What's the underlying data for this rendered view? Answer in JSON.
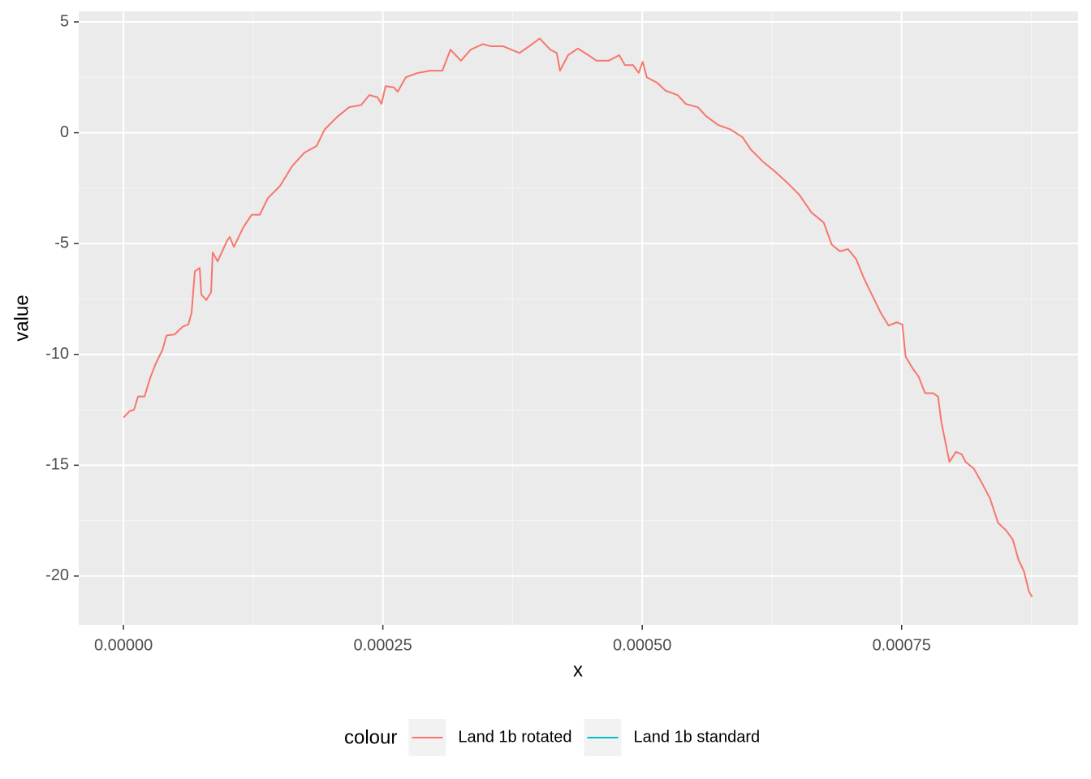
{
  "chart_data": {
    "type": "line",
    "xlabel": "x",
    "ylabel": "value",
    "legend_title": "colour",
    "legend_position": "bottom",
    "grid": true,
    "xlim": [
      -4.31e-05,
      0.00092
    ],
    "ylim": [
      -22.2,
      5.476
    ],
    "xticks": [
      {
        "value": 0,
        "label": "0.00000"
      },
      {
        "value": 0.00025,
        "label": "0.00025"
      },
      {
        "value": 0.0005,
        "label": "0.00050"
      },
      {
        "value": 0.00075,
        "label": "0.00075"
      }
    ],
    "yticks": [
      5,
      0,
      -5,
      -10,
      -15,
      -20
    ],
    "x": [
      0,
      6.26e-06,
      1.017e-05,
      1.408e-05,
      2.033e-05,
      2.581e-05,
      3.128e-05,
      3.754e-05,
      4.145e-05,
      4.927e-05,
      5.709e-05,
      6.256e-05,
      6.569e-05,
      6.882e-05,
      7.351e-05,
      7.507e-05,
      7.976e-05,
      8.446e-05,
      8.602e-05,
      9.071e-05,
      0.0001001,
      0.00010244,
      0.00010635,
      0.00011574,
      0.00012356,
      0.00013138,
      0.0001392,
      0.00015093,
      0.00016266,
      0.00017439,
      0.00018612,
      0.00019394,
      0.00020567,
      0.0002174,
      0.00022913,
      0.00023695,
      0.00024477,
      0.00024868,
      0.00025259,
      0.00026041,
      0.00026432,
      0.00027214,
      0.00028387,
      0.0002956,
      0.00030733,
      0.00031515,
      0.00032531,
      0.0003347,
      0.00034643,
      0.00035425,
      0.00036598,
      0.0003738,
      0.00038162,
      0.000391,
      0.00040117,
      0.00041133,
      0.00041759,
      0.00042072,
      0.00042854,
      0.00043792,
      0.00044809,
      0.00045591,
      0.00046764,
      0.0004778,
      0.00048328,
      0.0004911,
      0.00049657,
      0.00050048,
      0.00050439,
      0.00051456,
      0.00052238,
      0.00053411,
      0.00054193,
      0.00055366,
      0.00056148,
      0.00057321,
      0.00058494,
      0.00059667,
      0.00060449,
      0.00061622,
      0.00062795,
      0.00063968,
      0.00065141,
      0.00066314,
      0.00067487,
      0.00068269,
      0.00069051,
      0.00069833,
      0.00070615,
      0.00071397,
      0.00072179,
      0.00072961,
      0.00073743,
      0.00074525,
      0.00075072,
      0.00075385,
      0.00076089,
      0.00076636,
      0.00077262,
      0.00078044,
      0.00078513,
      0.00078826,
      0.00079217,
      0.00079608,
      0.00080233,
      0.00080781,
      0.00081172,
      0.00081954,
      0.00082736,
      0.00083518,
      0.000843,
      0.00085082,
      0.00085707,
      0.00086255,
      0.00086802,
      0.00087271,
      0.00087584
    ],
    "series": [
      {
        "name": "Land 1b rotated",
        "color": "#F8766D",
        "values": [
          -12.85,
          -12.55,
          -12.5,
          -11.9,
          -11.9,
          -11.05,
          -10.4,
          -9.8,
          -9.15,
          -9.1,
          -8.75,
          -8.65,
          -8.1,
          -6.25,
          -6.1,
          -7.3,
          -7.55,
          -7.2,
          -5.4,
          -5.8,
          -4.85,
          -4.7,
          -5.15,
          -4.25,
          -3.7,
          -3.7,
          -2.95,
          -2.4,
          -1.5,
          -0.9,
          -0.6,
          0.15,
          0.7,
          1.15,
          1.25,
          1.7,
          1.6,
          1.3,
          2.1,
          2.05,
          1.85,
          2.5,
          2.7,
          2.8,
          2.8,
          3.75,
          3.25,
          3.75,
          4.0,
          3.9,
          3.9,
          3.75,
          3.6,
          3.9,
          4.25,
          3.75,
          3.6,
          2.8,
          3.5,
          3.8,
          3.5,
          3.25,
          3.25,
          3.5,
          3.05,
          3.05,
          2.7,
          3.2,
          2.5,
          2.25,
          1.9,
          1.7,
          1.3,
          1.15,
          0.75,
          0.35,
          0.15,
          -0.2,
          -0.75,
          -1.3,
          -1.75,
          -2.25,
          -2.8,
          -3.6,
          -4.05,
          -5.05,
          -5.35,
          -5.25,
          -5.7,
          -6.6,
          -7.35,
          -8.1,
          -8.7,
          -8.55,
          -8.65,
          -10.1,
          -10.65,
          -11.0,
          -11.75,
          -11.75,
          -11.9,
          -13.05,
          -13.95,
          -14.85,
          -14.4,
          -14.5,
          -14.85,
          -15.15,
          -15.8,
          -16.5,
          -17.6,
          -17.95,
          -18.35,
          -19.25,
          -19.8,
          -20.7,
          -20.95
        ]
      },
      {
        "name": "Land 1b standard",
        "color": "#00BFC4",
        "values": [
          null,
          null,
          null,
          null,
          null,
          null,
          null,
          null,
          null,
          null,
          null,
          null,
          null,
          null,
          null,
          null,
          null,
          null,
          null,
          null,
          null,
          null,
          null,
          null,
          null,
          null,
          null,
          null,
          null,
          null,
          null,
          null,
          null,
          null,
          null,
          null,
          null,
          null,
          null,
          null,
          null,
          null,
          null,
          null,
          null,
          null,
          null,
          null,
          null,
          null,
          null,
          null,
          null,
          null,
          null,
          null,
          null,
          null,
          null,
          null,
          null,
          null,
          null,
          null,
          null,
          null,
          null,
          null,
          null,
          null,
          null,
          null,
          null,
          null,
          null,
          null,
          null,
          null,
          null,
          null,
          null,
          null,
          null,
          null,
          null,
          null,
          null,
          null,
          null,
          null,
          null,
          null,
          null,
          null,
          null,
          null,
          null,
          null,
          null,
          null,
          null,
          null,
          null,
          null,
          null,
          null,
          null,
          null,
          null,
          null,
          null,
          null,
          null,
          null,
          null,
          null,
          null
        ]
      }
    ]
  }
}
